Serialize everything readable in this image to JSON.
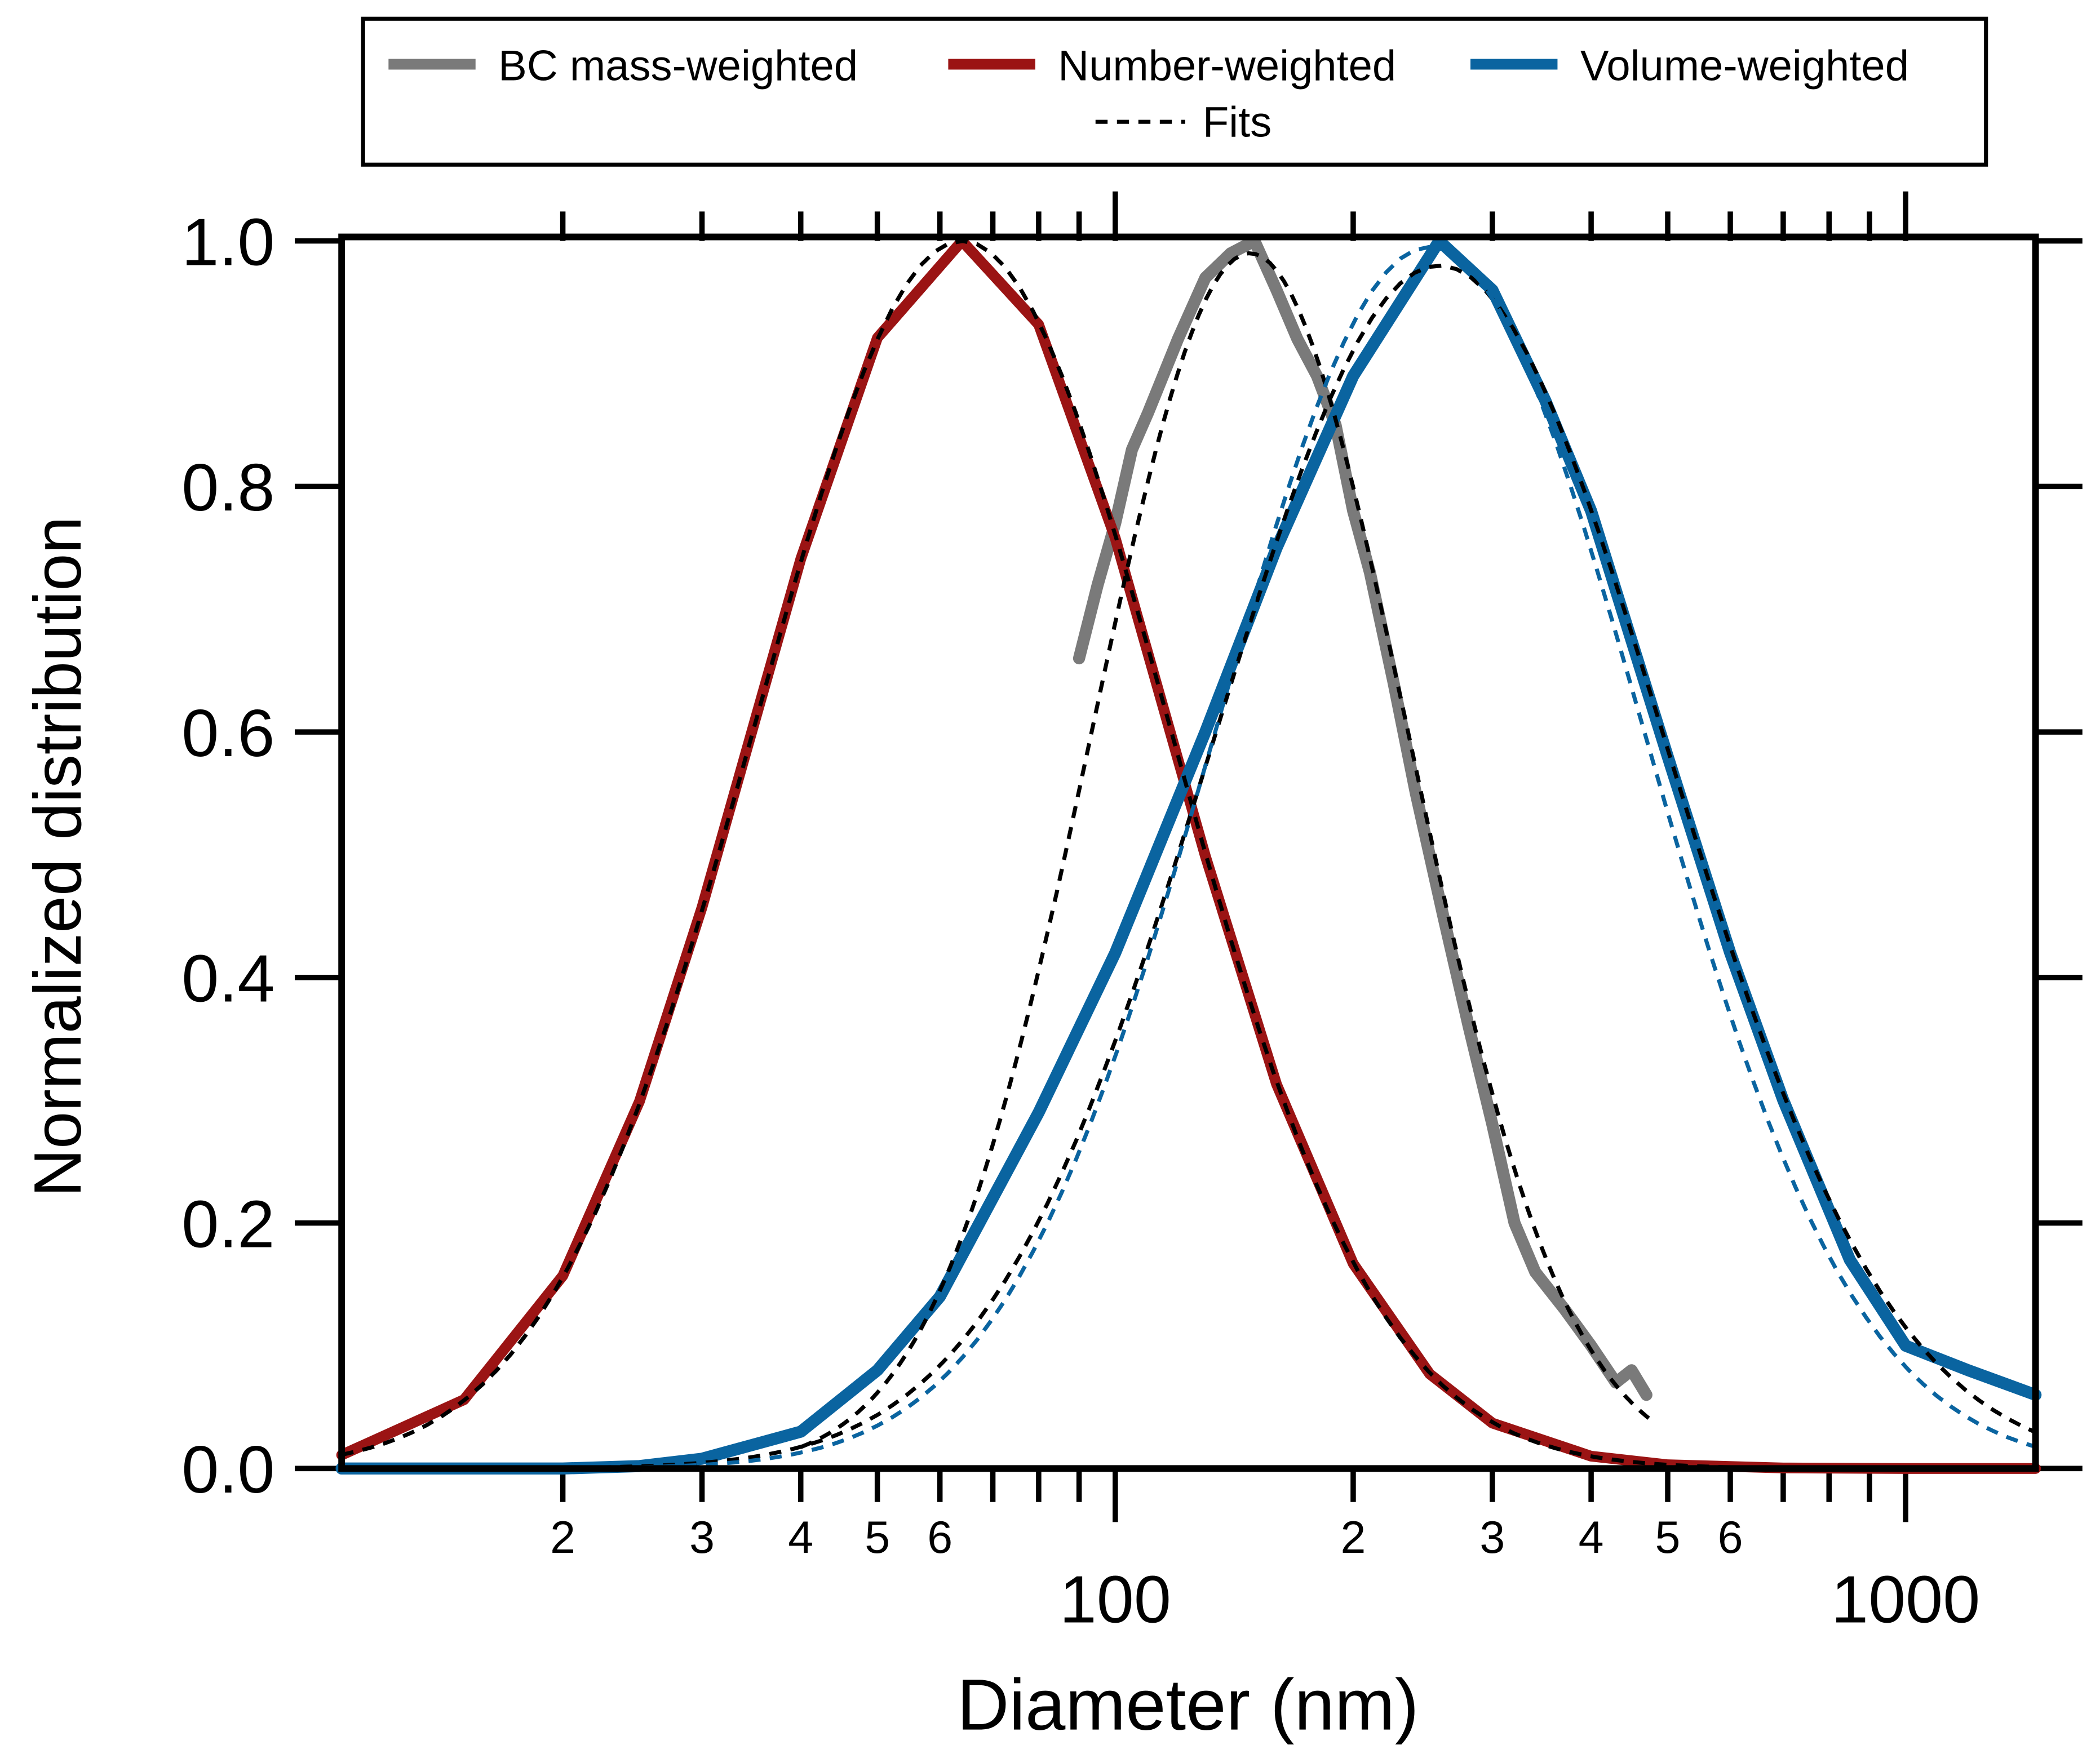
{
  "chart_data": {
    "type": "line",
    "title": "",
    "xlabel": "Diameter (nm)",
    "ylabel": "Normalized distribution",
    "xscale": "log",
    "xlim": [
      10.5,
      1460
    ],
    "ylim": [
      0,
      1.0
    ],
    "yticks": [
      "0.0",
      "0.2",
      "0.4",
      "0.6",
      "0.8",
      "1.0"
    ],
    "xticks_major": [
      "100",
      "1000"
    ],
    "xticks_minor_labels": [
      "2",
      "3",
      "4",
      "5",
      "6"
    ],
    "legend": {
      "placement": "top-outside",
      "entries": [
        "BC mass-weighted",
        "Number-weighted",
        "Volume-weighted",
        "Fits"
      ]
    },
    "colors": {
      "bc": "#7a7a7a",
      "number": "#9b1414",
      "volume": "#0a64a0",
      "fit": "#000000",
      "volume_fit": "#0a64a0"
    },
    "series": [
      {
        "name": "BC mass-weighted",
        "x": [
          90,
          95,
          100,
          105,
          110,
          120,
          130,
          140,
          150,
          160,
          170,
          180,
          190,
          200,
          210,
          225,
          240,
          260,
          280,
          300,
          320,
          340,
          370,
          400,
          430,
          450,
          470
        ],
        "y": [
          0.66,
          0.72,
          0.77,
          0.83,
          0.86,
          0.92,
          0.97,
          0.99,
          1.0,
          0.96,
          0.92,
          0.89,
          0.85,
          0.78,
          0.73,
          0.64,
          0.55,
          0.45,
          0.36,
          0.28,
          0.2,
          0.16,
          0.13,
          0.1,
          0.07,
          0.08,
          0.06
        ]
      },
      {
        "name": "Number-weighted",
        "x": [
          10.5,
          15,
          20,
          25,
          30,
          40,
          50,
          64,
          80,
          100,
          130,
          160,
          200,
          250,
          300,
          400,
          500,
          700,
          1000,
          1460
        ],
        "y": [
          0.011,
          0.056,
          0.157,
          0.299,
          0.457,
          0.741,
          0.921,
          1.0,
          0.932,
          0.758,
          0.499,
          0.313,
          0.167,
          0.077,
          0.037,
          0.01,
          0.003,
          0.0004,
          0,
          0
        ]
      },
      {
        "name": "Volume-weighted",
        "x": [
          10.5,
          20,
          25,
          30,
          40,
          50,
          60,
          80,
          100,
          130,
          160,
          200,
          257,
          300,
          350,
          400,
          500,
          600,
          700,
          850,
          1000,
          1200,
          1460
        ],
        "y": [
          0,
          0,
          0.002,
          0.008,
          0.03,
          0.08,
          0.14,
          0.29,
          0.42,
          0.6,
          0.75,
          0.89,
          1.0,
          0.96,
          0.87,
          0.78,
          0.58,
          0.42,
          0.3,
          0.17,
          0.1,
          0.08,
          0.06
        ]
      }
    ],
    "fits": [
      {
        "name": "BC mass-weighted fit",
        "kind": "lognormal",
        "mode_nm": 148,
        "sigma_log10": 0.2,
        "peak": 0.99,
        "xrange": [
          40,
          480
        ],
        "color_key": "fit"
      },
      {
        "name": "Number-weighted fit",
        "kind": "lognormal",
        "mode_nm": 64,
        "sigma_log10": 0.262,
        "peak": 1.0,
        "xrange": [
          10.5,
          1460
        ],
        "color_key": "fit"
      },
      {
        "name": "Volume-weighted fit",
        "kind": "lognormal",
        "mode_nm": 257,
        "sigma_log10": 0.285,
        "peak": 0.98,
        "xrange": [
          10.5,
          1460
        ],
        "color_key": "fit"
      },
      {
        "name": "Volume-weighted fit (blue)",
        "kind": "lognormal",
        "mode_nm": 250,
        "sigma_log10": 0.27,
        "peak": 0.995,
        "xrange": [
          10.5,
          1460
        ],
        "color_key": "volume_fit"
      }
    ]
  }
}
